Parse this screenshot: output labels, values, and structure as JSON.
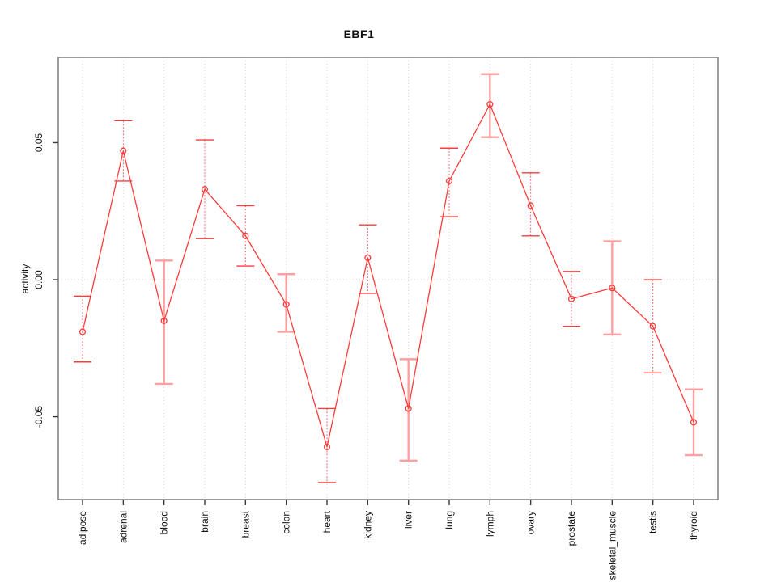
{
  "title": "EBF1",
  "chart_data": {
    "type": "line",
    "title": "EBF1",
    "xlabel": "",
    "ylabel": "activity",
    "legend": "none",
    "grid": "vertical dotted gridline at each category; dotted horizontal line at y=0",
    "ylim": [
      -0.0802,
      0.0811
    ],
    "yticks": {
      "values": [
        0.05,
        0.0,
        -0.05
      ],
      "labels": [
        "0.05",
        "0.00",
        "-0.05"
      ]
    },
    "categories": [
      "adipose",
      "adrenal",
      "blood",
      "brain",
      "breast",
      "colon",
      "heart",
      "kidney",
      "liver",
      "lung",
      "lymph",
      "ovary",
      "prostate",
      "skeletal_muscle",
      "testis",
      "thyroid"
    ],
    "series": [
      {
        "name": "EBF1 activity",
        "marker": "open-circle",
        "values": [
          -0.019,
          0.047,
          -0.015,
          0.033,
          0.016,
          -0.009,
          -0.061,
          0.008,
          -0.047,
          0.036,
          0.064,
          0.027,
          -0.007,
          -0.003,
          -0.017,
          -0.052
        ],
        "err_high": [
          -0.006,
          0.058,
          0.007,
          0.051,
          0.027,
          0.002,
          -0.047,
          0.02,
          -0.029,
          0.048,
          0.075,
          0.039,
          0.003,
          0.014,
          0.0,
          -0.04
        ],
        "err_low": [
          -0.03,
          0.036,
          -0.038,
          0.015,
          0.005,
          -0.019,
          -0.074,
          -0.005,
          -0.066,
          0.023,
          0.052,
          0.016,
          -0.017,
          -0.02,
          -0.034,
          -0.064
        ],
        "err_style": [
          "dotted",
          "dotted",
          "solid",
          "dotted",
          "dotted",
          "solid",
          "dotted",
          "dotted",
          "solid",
          "dotted",
          "solid",
          "dotted",
          "dotted",
          "solid",
          "dotted",
          "solid"
        ]
      }
    ],
    "colors": {
      "line": "#ff3b3b",
      "marker": "#ff3b3b",
      "error_bar_dotted": "#ff4d4d",
      "error_bar_solid": "#ff9e9e",
      "gridline": "#cfcfcf",
      "box": "#7d7d7d",
      "tick": "#3a3a3a",
      "text": "#111111"
    }
  }
}
